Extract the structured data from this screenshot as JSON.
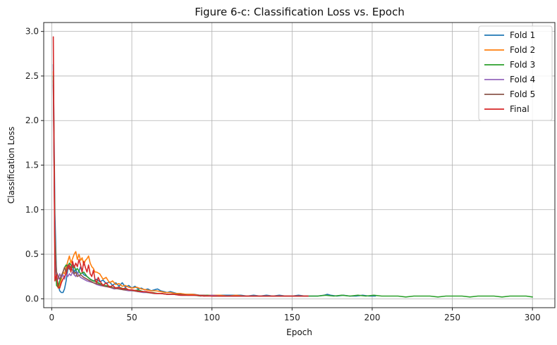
{
  "chart_data": {
    "type": "line",
    "title": "Figure 6-c: Classification Loss vs. Epoch",
    "xlabel": "Epoch",
    "ylabel": "Classification Loss",
    "xlim": [
      -5,
      314
    ],
    "ylim": [
      -0.1,
      3.1
    ],
    "xticks": [
      0,
      50,
      100,
      150,
      200,
      250,
      300
    ],
    "yticks": [
      0.0,
      0.5,
      1.0,
      1.5,
      2.0,
      2.5,
      3.0
    ],
    "grid": true,
    "legend_position": "top-right",
    "series": [
      {
        "name": "Fold 1",
        "color": "#1f77b4",
        "x": [
          1,
          2,
          3,
          4,
          5,
          6,
          7,
          8,
          9,
          10,
          11,
          12,
          13,
          14,
          15,
          16,
          17,
          18,
          19,
          20,
          22,
          24,
          26,
          28,
          30,
          32,
          34,
          36,
          38,
          40,
          42,
          44,
          46,
          48,
          50,
          52,
          54,
          56,
          58,
          60,
          62,
          64,
          66,
          68,
          70,
          72,
          74,
          76,
          78,
          80,
          83,
          86,
          89,
          92,
          95,
          98,
          101,
          104,
          107,
          110,
          114,
          118,
          122,
          126,
          130,
          134,
          138,
          142,
          146,
          150,
          154,
          158,
          162,
          166,
          170,
          172,
          174,
          178,
          182,
          186,
          190,
          194,
          198,
          202
        ],
        "y": [
          2.63,
          0.95,
          0.25,
          0.16,
          0.09,
          0.07,
          0.07,
          0.11,
          0.2,
          0.33,
          0.37,
          0.35,
          0.39,
          0.3,
          0.33,
          0.28,
          0.31,
          0.36,
          0.3,
          0.27,
          0.25,
          0.22,
          0.2,
          0.22,
          0.19,
          0.21,
          0.17,
          0.19,
          0.15,
          0.18,
          0.14,
          0.18,
          0.13,
          0.15,
          0.12,
          0.14,
          0.11,
          0.12,
          0.1,
          0.11,
          0.09,
          0.1,
          0.11,
          0.09,
          0.08,
          0.07,
          0.08,
          0.07,
          0.06,
          0.06,
          0.05,
          0.05,
          0.05,
          0.04,
          0.04,
          0.04,
          0.04,
          0.04,
          0.04,
          0.04,
          0.04,
          0.04,
          0.03,
          0.04,
          0.03,
          0.04,
          0.03,
          0.04,
          0.03,
          0.03,
          0.04,
          0.03,
          0.03,
          0.03,
          0.04,
          0.05,
          0.04,
          0.03,
          0.04,
          0.03,
          0.03,
          0.04,
          0.03,
          0.03
        ]
      },
      {
        "name": "Fold 2",
        "color": "#ff7f0e",
        "x": [
          1,
          2,
          3,
          4,
          5,
          6,
          7,
          8,
          9,
          10,
          11,
          12,
          13,
          14,
          15,
          16,
          17,
          18,
          19,
          20,
          21,
          22,
          23,
          24,
          25,
          26,
          27,
          28,
          30,
          32,
          34,
          36,
          38,
          40,
          42,
          44,
          46,
          48,
          50,
          53,
          56,
          59,
          62,
          65,
          68,
          71,
          74,
          77,
          80,
          84,
          88,
          92,
          96,
          100,
          105,
          110,
          115,
          120,
          125,
          130,
          135,
          140,
          145,
          150,
          155,
          160
        ],
        "y": [
          2.55,
          0.7,
          0.2,
          0.12,
          0.15,
          0.22,
          0.3,
          0.28,
          0.35,
          0.42,
          0.48,
          0.4,
          0.45,
          0.5,
          0.53,
          0.44,
          0.5,
          0.43,
          0.46,
          0.38,
          0.43,
          0.45,
          0.48,
          0.4,
          0.36,
          0.34,
          0.3,
          0.3,
          0.28,
          0.22,
          0.24,
          0.18,
          0.2,
          0.16,
          0.17,
          0.14,
          0.15,
          0.13,
          0.12,
          0.13,
          0.11,
          0.1,
          0.09,
          0.09,
          0.08,
          0.07,
          0.07,
          0.06,
          0.06,
          0.05,
          0.05,
          0.04,
          0.04,
          0.04,
          0.04,
          0.03,
          0.04,
          0.03,
          0.03,
          0.03,
          0.03,
          0.03,
          0.03,
          0.03,
          0.03,
          0.03
        ]
      },
      {
        "name": "Fold 3",
        "color": "#2ca02c",
        "x": [
          1,
          2,
          3,
          4,
          5,
          6,
          7,
          8,
          9,
          10,
          11,
          12,
          13,
          14,
          15,
          16,
          18,
          20,
          22,
          24,
          26,
          28,
          30,
          33,
          36,
          39,
          42,
          45,
          48,
          51,
          54,
          57,
          60,
          63,
          66,
          69,
          72,
          75,
          78,
          81,
          85,
          89,
          93,
          97,
          101,
          106,
          111,
          116,
          121,
          126,
          131,
          136,
          141,
          146,
          151,
          156,
          161,
          166,
          171,
          176,
          181,
          186,
          191,
          196,
          201,
          206,
          211,
          216,
          221,
          226,
          231,
          236,
          241,
          246,
          251,
          256,
          261,
          266,
          271,
          276,
          281,
          286,
          291,
          296,
          300
        ],
        "y": [
          2.5,
          0.6,
          0.15,
          0.13,
          0.2,
          0.25,
          0.3,
          0.35,
          0.38,
          0.36,
          0.4,
          0.38,
          0.35,
          0.37,
          0.32,
          0.34,
          0.28,
          0.3,
          0.25,
          0.22,
          0.2,
          0.19,
          0.17,
          0.15,
          0.14,
          0.12,
          0.13,
          0.11,
          0.1,
          0.09,
          0.1,
          0.08,
          0.07,
          0.07,
          0.06,
          0.06,
          0.05,
          0.05,
          0.05,
          0.04,
          0.04,
          0.04,
          0.03,
          0.04,
          0.03,
          0.03,
          0.03,
          0.03,
          0.03,
          0.03,
          0.03,
          0.03,
          0.03,
          0.03,
          0.03,
          0.03,
          0.03,
          0.03,
          0.04,
          0.03,
          0.04,
          0.03,
          0.04,
          0.03,
          0.04,
          0.03,
          0.03,
          0.03,
          0.02,
          0.03,
          0.03,
          0.03,
          0.02,
          0.03,
          0.03,
          0.03,
          0.02,
          0.03,
          0.03,
          0.03,
          0.02,
          0.03,
          0.03,
          0.03,
          0.02
        ]
      },
      {
        "name": "Fold 4",
        "color": "#9467bd",
        "x": [
          1,
          2,
          3,
          4,
          5,
          6,
          7,
          8,
          9,
          10,
          11,
          12,
          13,
          14,
          15,
          16,
          18,
          20,
          22,
          24,
          26,
          28,
          30,
          33,
          36,
          39,
          42,
          45,
          48,
          51,
          54,
          57,
          60,
          64,
          68,
          72,
          76,
          80,
          85,
          90,
          95,
          100,
          106,
          112,
          118,
          124,
          130,
          136,
          142,
          148,
          154,
          160
        ],
        "y": [
          2.4,
          0.5,
          0.25,
          0.22,
          0.28,
          0.24,
          0.27,
          0.22,
          0.3,
          0.25,
          0.28,
          0.26,
          0.3,
          0.27,
          0.25,
          0.29,
          0.24,
          0.22,
          0.2,
          0.19,
          0.18,
          0.16,
          0.15,
          0.14,
          0.13,
          0.11,
          0.12,
          0.1,
          0.09,
          0.09,
          0.08,
          0.07,
          0.07,
          0.06,
          0.06,
          0.05,
          0.05,
          0.04,
          0.04,
          0.04,
          0.03,
          0.04,
          0.03,
          0.03,
          0.03,
          0.03,
          0.03,
          0.03,
          0.03,
          0.03,
          0.03,
          0.03
        ]
      },
      {
        "name": "Fold 5",
        "color": "#8c564b",
        "x": [
          1,
          2,
          3,
          4,
          5,
          6,
          7,
          8,
          9,
          10,
          11,
          12,
          13,
          14,
          15,
          16,
          18,
          20,
          22,
          24,
          26,
          28,
          30,
          33,
          36,
          39,
          42,
          45,
          48,
          51,
          54,
          57,
          60,
          64,
          68,
          72,
          76,
          80,
          85,
          90,
          95,
          100,
          106,
          112,
          118,
          124,
          130,
          136,
          142,
          148,
          154,
          160
        ],
        "y": [
          2.45,
          0.55,
          0.3,
          0.25,
          0.22,
          0.26,
          0.3,
          0.35,
          0.3,
          0.38,
          0.33,
          0.36,
          0.32,
          0.28,
          0.3,
          0.25,
          0.27,
          0.24,
          0.22,
          0.2,
          0.18,
          0.17,
          0.16,
          0.14,
          0.13,
          0.12,
          0.11,
          0.1,
          0.1,
          0.09,
          0.08,
          0.08,
          0.07,
          0.06,
          0.06,
          0.05,
          0.05,
          0.05,
          0.04,
          0.04,
          0.04,
          0.03,
          0.03,
          0.03,
          0.03,
          0.03,
          0.03,
          0.03,
          0.03,
          0.03,
          0.03,
          0.03
        ]
      },
      {
        "name": "Final",
        "color": "#d62728",
        "x": [
          1,
          2,
          3,
          4,
          5,
          6,
          7,
          8,
          9,
          10,
          11,
          12,
          13,
          14,
          15,
          16,
          17,
          18,
          19,
          20,
          21,
          22,
          23,
          24,
          25,
          26,
          27,
          28,
          29,
          30,
          32,
          34,
          36,
          38,
          40,
          42,
          44,
          46,
          48,
          50,
          53,
          56,
          59,
          62,
          65,
          68,
          72,
          76,
          80,
          85,
          90,
          95,
          100,
          106,
          112,
          118,
          124,
          130,
          136,
          142,
          148,
          154,
          160
        ],
        "y": [
          2.94,
          0.2,
          0.27,
          0.13,
          0.12,
          0.18,
          0.22,
          0.25,
          0.28,
          0.35,
          0.38,
          0.3,
          0.42,
          0.35,
          0.4,
          0.36,
          0.44,
          0.38,
          0.3,
          0.42,
          0.35,
          0.3,
          0.38,
          0.28,
          0.25,
          0.32,
          0.22,
          0.18,
          0.24,
          0.2,
          0.15,
          0.18,
          0.13,
          0.15,
          0.12,
          0.13,
          0.11,
          0.12,
          0.1,
          0.1,
          0.09,
          0.08,
          0.08,
          0.07,
          0.06,
          0.06,
          0.05,
          0.05,
          0.04,
          0.04,
          0.04,
          0.03,
          0.03,
          0.03,
          0.03,
          0.03,
          0.03,
          0.03,
          0.03,
          0.03,
          0.03,
          0.03,
          0.03
        ]
      }
    ]
  }
}
